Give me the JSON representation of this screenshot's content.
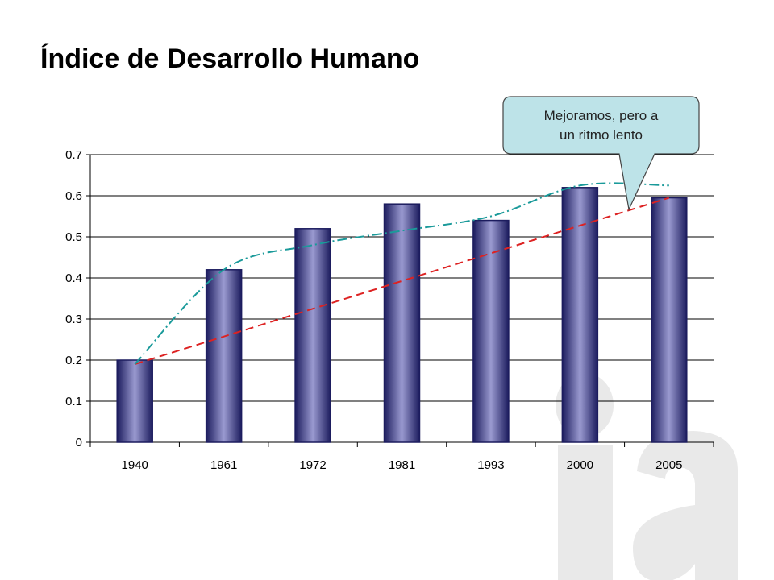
{
  "slide": {
    "title": "Índice de Desarrollo Humano",
    "watermark_text": "ia"
  },
  "callout": {
    "lines": [
      "Mejoramos, pero a",
      "un ritmo lento"
    ],
    "fill": "#bde3e8"
  },
  "colors": {
    "bar_dark": "#1c1c5e",
    "bar_light": "#9a9ad0",
    "trend_line": "#dd2222",
    "smooth_line": "#1a9a9a",
    "watermark": "#e9e9e9"
  },
  "chart_data": {
    "type": "bar",
    "title": "",
    "xlabel": "",
    "ylabel": "",
    "categories": [
      "1940",
      "1961",
      "1972",
      "1981",
      "1993",
      "2000",
      "2005"
    ],
    "values": [
      0.2,
      0.42,
      0.52,
      0.58,
      0.54,
      0.62,
      0.595
    ],
    "ylim": [
      0,
      0.7
    ],
    "yticks": [
      "0",
      "0.1",
      "0.2",
      "0.3",
      "0.4",
      "0.5",
      "0.6",
      "0.7"
    ],
    "grid": true,
    "legend": "none",
    "overlays": [
      {
        "kind": "linear-trend",
        "style": "dashed",
        "color": "#dd2222",
        "from": 0.19,
        "to": 0.595
      },
      {
        "kind": "smoothed-trend",
        "style": "dash-dot",
        "color": "#1a9a9a",
        "values": [
          0.19,
          0.42,
          0.48,
          0.515,
          0.55,
          0.625,
          0.625
        ]
      }
    ]
  }
}
